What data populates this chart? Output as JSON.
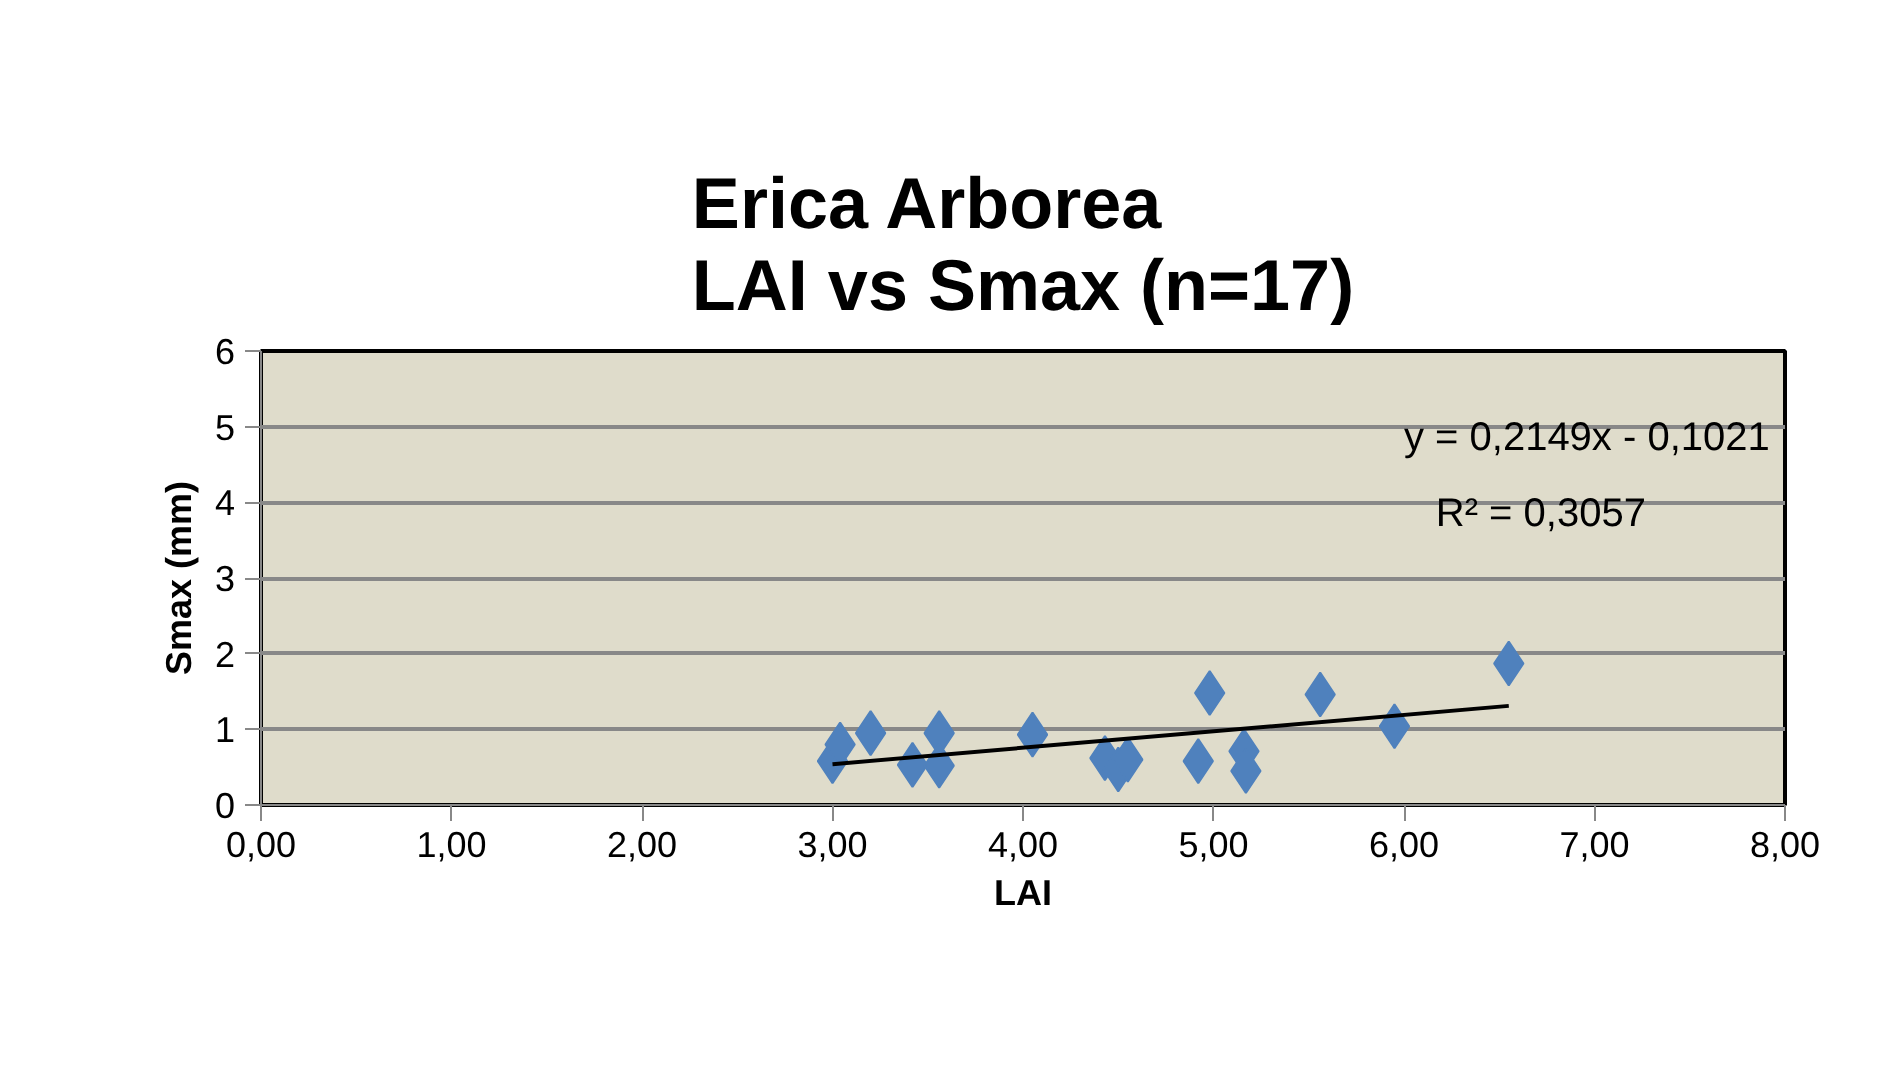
{
  "chart_data": {
    "type": "scatter",
    "title": "Erica Arborea\nLAI vs Smax (n=17)",
    "xlabel": "LAI",
    "ylabel": "Smax (mm)",
    "annotations": [
      "y = 0,2149x - 0,1021",
      "R² = 0,3057"
    ],
    "series": [
      {
        "color": "#4f81bd",
        "marker": "diamond",
        "x": [
          3.0,
          3.04,
          3.2,
          3.42,
          3.56,
          3.56,
          4.05,
          4.43,
          4.5,
          4.55,
          4.92,
          4.98,
          5.16,
          5.17,
          5.56,
          5.95,
          6.55
        ],
        "values": [
          0.58,
          0.8,
          0.95,
          0.53,
          0.95,
          0.52,
          0.93,
          0.62,
          0.47,
          0.6,
          0.58,
          1.48,
          0.71,
          0.45,
          1.46,
          1.04,
          1.87
        ]
      },
      {
        "type": "line",
        "color": "#000000",
        "x": [
          3.0,
          6.55
        ],
        "values": [
          0.54,
          1.31
        ]
      }
    ],
    "xlim": [
      0,
      8
    ],
    "ylim": [
      0,
      6
    ],
    "xticks": [
      {
        "value": 0,
        "label": "0,00"
      },
      {
        "value": 1,
        "label": "1,00"
      },
      {
        "value": 2,
        "label": "2,00"
      },
      {
        "value": 3,
        "label": "3,00"
      },
      {
        "value": 4,
        "label": "4,00"
      },
      {
        "value": 5,
        "label": "5,00"
      },
      {
        "value": 6,
        "label": "6,00"
      },
      {
        "value": 7,
        "label": "7,00"
      },
      {
        "value": 8,
        "label": "8,00"
      }
    ],
    "yticks": [
      0,
      1,
      2,
      3,
      4,
      5,
      6
    ],
    "grid": "y"
  }
}
